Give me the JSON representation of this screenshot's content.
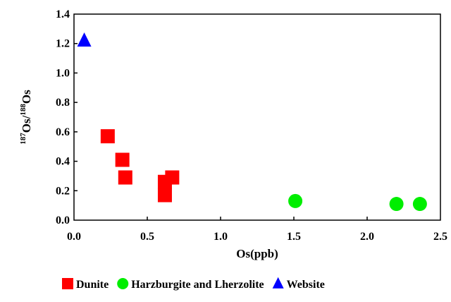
{
  "chart_data": {
    "type": "scatter",
    "xlabel": "Os(ppb)",
    "ylabel": {
      "sup1": "187",
      "text1": "Os/",
      "sup2": "188",
      "text2": "Os"
    },
    "xlim": [
      0,
      2.5
    ],
    "ylim": [
      0,
      1.4
    ],
    "x_ticks": [
      "0.0",
      "0.5",
      "1.0",
      "1.5",
      "2.0",
      "2.5"
    ],
    "y_ticks": [
      "0.0",
      "0.2",
      "0.4",
      "0.6",
      "0.8",
      "1.0",
      "1.2",
      "1.4"
    ],
    "grid": false,
    "legend_position": "bottom",
    "series": [
      {
        "name": "Dunite",
        "marker": "square",
        "color": "#ff0000",
        "points": [
          {
            "x": 0.23,
            "y": 0.57
          },
          {
            "x": 0.33,
            "y": 0.41
          },
          {
            "x": 0.35,
            "y": 0.29
          },
          {
            "x": 0.62,
            "y": 0.26
          },
          {
            "x": 0.62,
            "y": 0.17
          },
          {
            "x": 0.67,
            "y": 0.29
          }
        ]
      },
      {
        "name": "Harzburgite and Lherzolite",
        "marker": "circle",
        "color": "#00ee00",
        "points": [
          {
            "x": 1.51,
            "y": 0.13
          },
          {
            "x": 2.2,
            "y": 0.11
          },
          {
            "x": 2.36,
            "y": 0.11
          }
        ]
      },
      {
        "name": "Website",
        "marker": "triangle",
        "color": "#0000ff",
        "points": [
          {
            "x": 0.07,
            "y": 1.22
          }
        ]
      }
    ]
  }
}
